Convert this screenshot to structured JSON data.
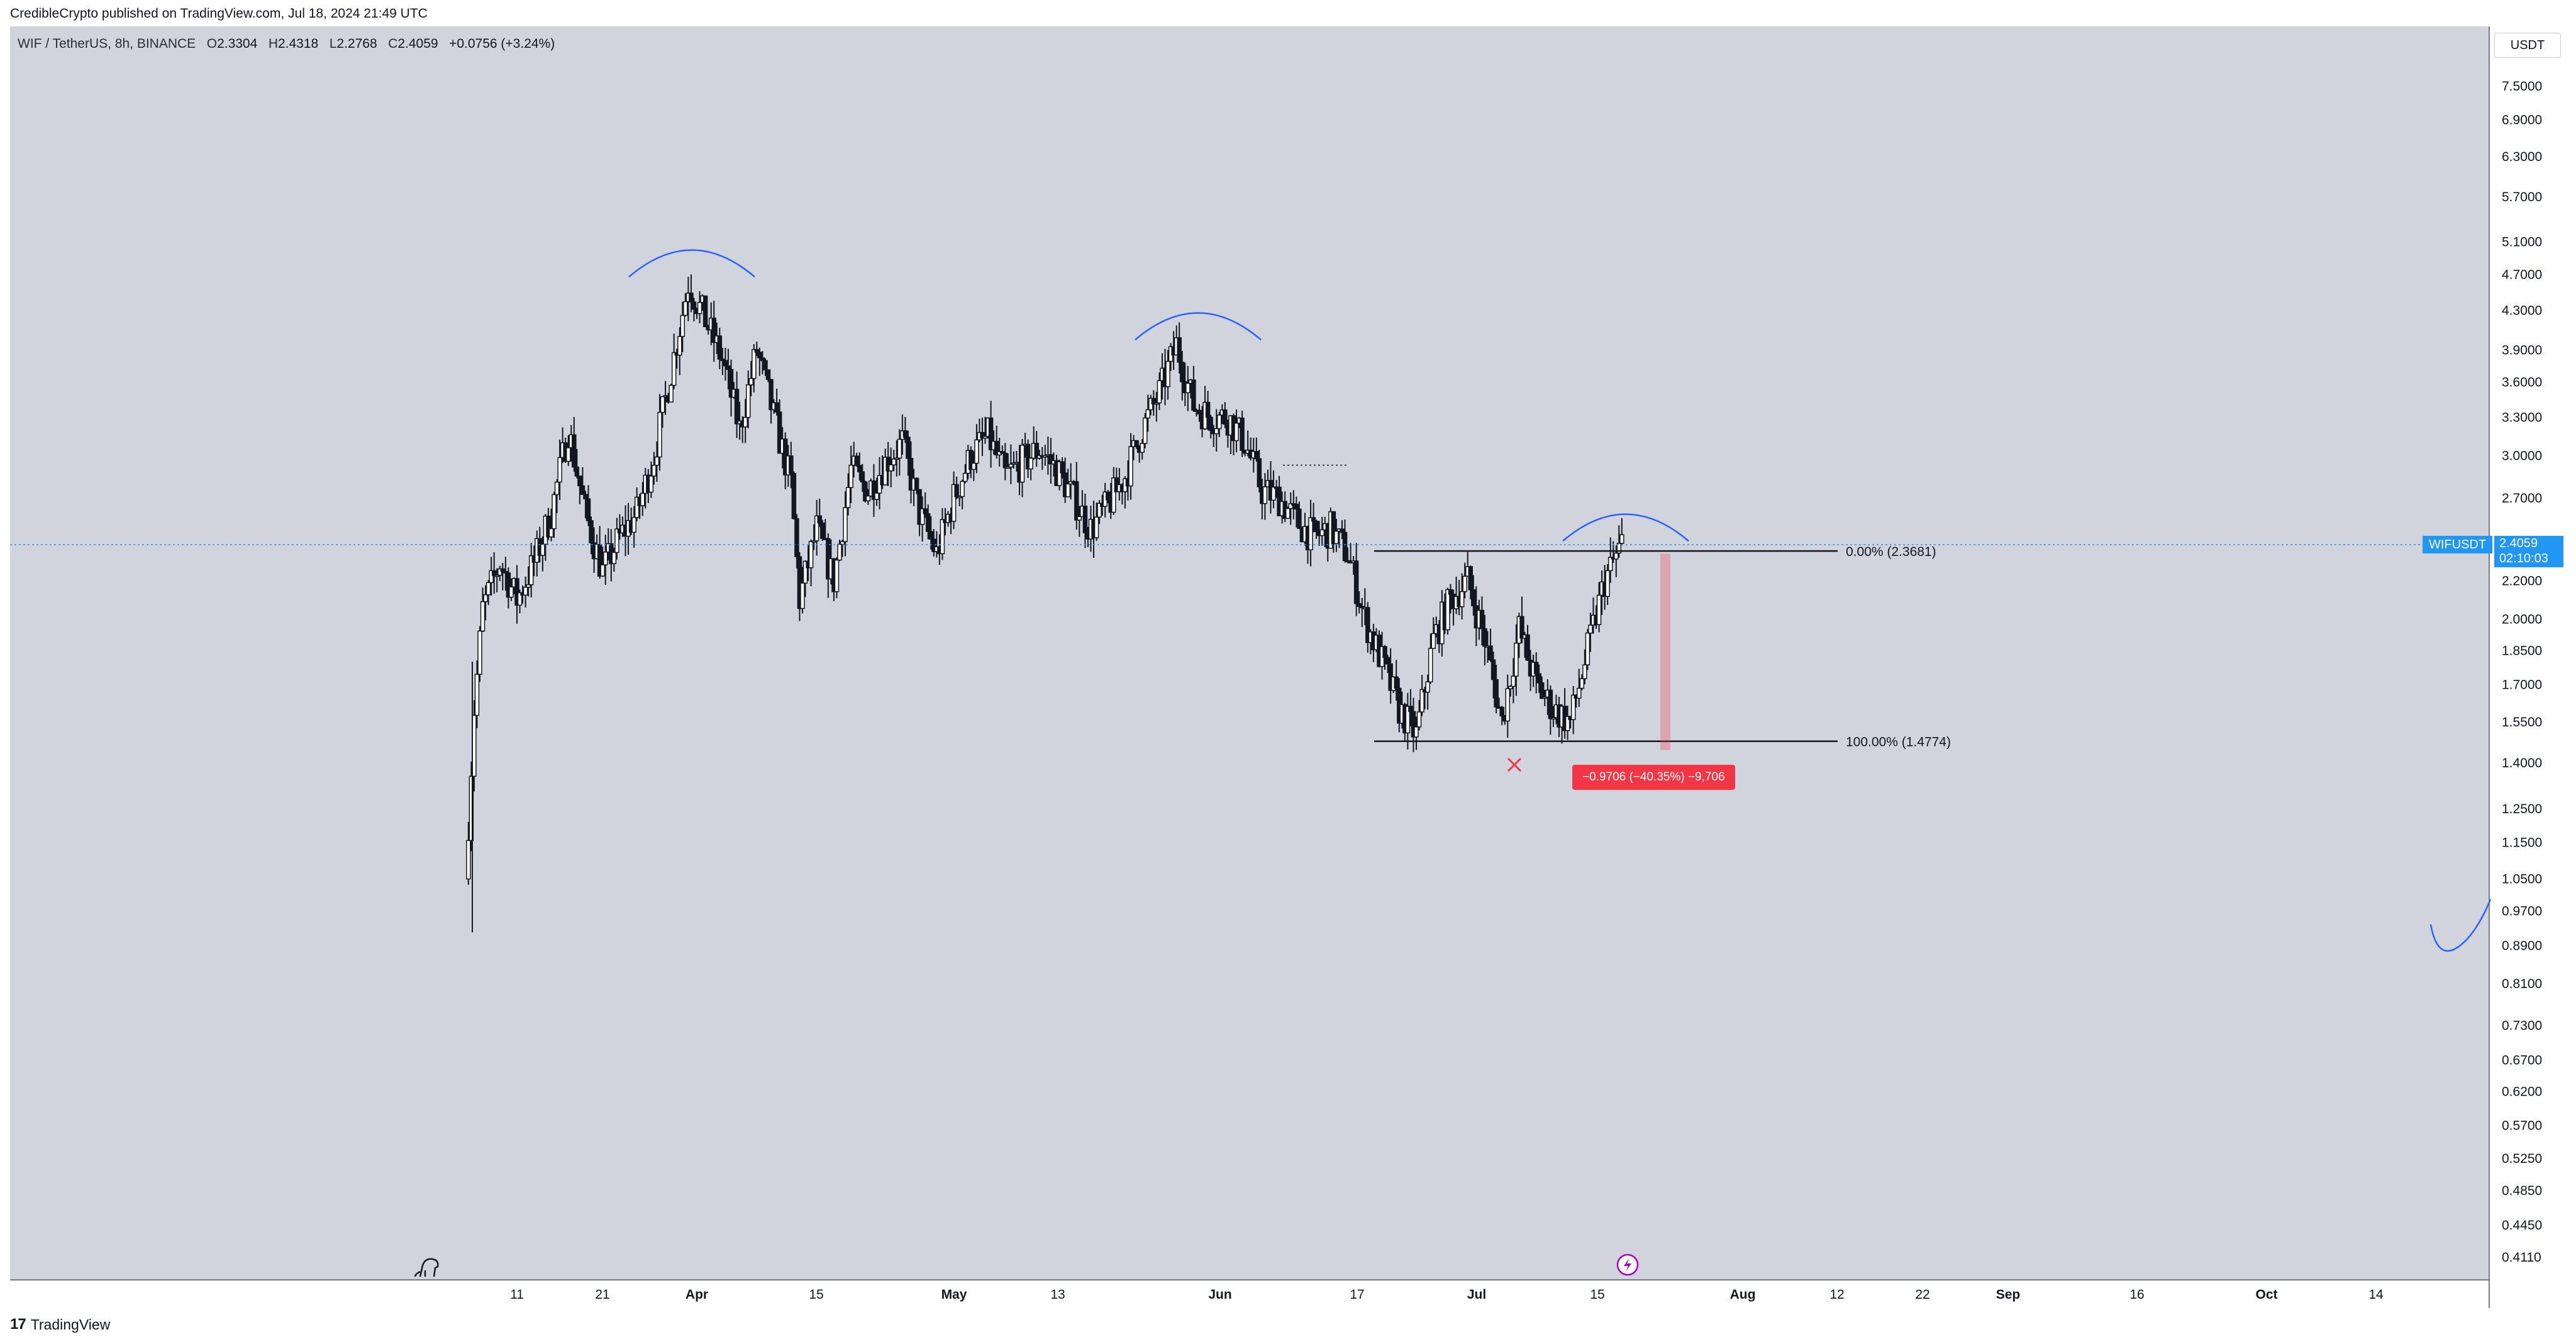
{
  "header": {
    "publisher": "CredibleCrypto published on TradingView.com, Jul 18, 2024 21:49 UTC"
  },
  "legend": {
    "symbol": "WIF / TetherUS, 8h, BINANCE",
    "open_label": "O",
    "open": "2.3304",
    "high_label": "H",
    "high": "2.4318",
    "low_label": "L",
    "low": "2.2768",
    "close_label": "C",
    "close": "2.4059",
    "change": "+0.0756 (+3.24%)"
  },
  "currency_button": "USDT",
  "last_price": {
    "symbol": "WIFUSDT",
    "price": "2.4059",
    "countdown": "02:10:03"
  },
  "fib": {
    "level0_label": "0.00% (2.3681)",
    "level1_label": "100.00% (1.4774)"
  },
  "measure": {
    "label": "−0.9706 (−40.35%) −9,706"
  },
  "footer": {
    "brand": "TradingView",
    "logo": "17"
  },
  "colors": {
    "background": "#d1d4dc",
    "price_line": "#2196f3",
    "arc": "#2962ff",
    "measure": "#f23645",
    "candle": "#131722"
  },
  "icons": [
    "dinosaur-icon",
    "lightning-icon",
    "cross-icon"
  ],
  "chart_data": {
    "type": "candlestick",
    "title": "WIF / TetherUS, 8h, BINANCE",
    "y_scale": "log",
    "y_ticks": [
      "7.5000",
      "6.9000",
      "6.3000",
      "5.7000",
      "5.1000",
      "4.7000",
      "4.3000",
      "3.9000",
      "3.6000",
      "3.3000",
      "3.0000",
      "2.7000",
      "2.2000",
      "2.0000",
      "1.8500",
      "1.7000",
      "1.5500",
      "1.4000",
      "1.2500",
      "1.1500",
      "1.0500",
      "0.9700",
      "0.8900",
      "0.8100",
      "0.7300",
      "0.6700",
      "0.6200",
      "0.5700",
      "0.5250",
      "0.4850",
      "0.4450",
      "0.4110"
    ],
    "x_ticks": [
      "11",
      "21",
      "Apr",
      "15",
      "May",
      "13",
      "Jun",
      "17",
      "Jul",
      "15",
      "Aug",
      "12",
      "22",
      "Sep",
      "16",
      "Oct",
      "14"
    ],
    "close_series": [
      [
        "2024-03-05",
        1.05
      ],
      [
        "2024-03-06",
        1.6
      ],
      [
        "2024-03-07",
        2.05
      ],
      [
        "2024-03-09",
        2.3
      ],
      [
        "2024-03-11",
        2.1
      ],
      [
        "2024-03-13",
        2.3
      ],
      [
        "2024-03-15",
        2.6
      ],
      [
        "2024-03-17",
        3.2
      ],
      [
        "2024-03-19",
        2.6
      ],
      [
        "2024-03-21",
        2.25
      ],
      [
        "2024-03-23",
        2.45
      ],
      [
        "2024-03-25",
        2.6
      ],
      [
        "2024-03-27",
        3.0
      ],
      [
        "2024-03-29",
        3.7
      ],
      [
        "2024-03-31",
        4.6
      ],
      [
        "2024-04-02",
        4.2
      ],
      [
        "2024-04-04",
        3.8
      ],
      [
        "2024-04-06",
        3.2
      ],
      [
        "2024-04-08",
        3.9
      ],
      [
        "2024-04-10",
        3.3
      ],
      [
        "2024-04-12",
        2.8
      ],
      [
        "2024-04-13",
        2.1
      ],
      [
        "2024-04-15",
        2.5
      ],
      [
        "2024-04-17",
        2.2
      ],
      [
        "2024-04-19",
        2.9
      ],
      [
        "2024-04-21",
        2.75
      ],
      [
        "2024-04-23",
        2.95
      ],
      [
        "2024-04-25",
        3.1
      ],
      [
        "2024-04-27",
        2.6
      ],
      [
        "2024-04-29",
        2.35
      ],
      [
        "2024-05-01",
        2.7
      ],
      [
        "2024-05-03",
        3.0
      ],
      [
        "2024-05-05",
        3.15
      ],
      [
        "2024-05-07",
        2.85
      ],
      [
        "2024-05-09",
        2.95
      ],
      [
        "2024-05-11",
        3.05
      ],
      [
        "2024-05-13",
        2.9
      ],
      [
        "2024-05-15",
        2.7
      ],
      [
        "2024-05-17",
        2.5
      ],
      [
        "2024-05-19",
        2.65
      ],
      [
        "2024-05-21",
        2.85
      ],
      [
        "2024-05-23",
        3.2
      ],
      [
        "2024-05-25",
        3.5
      ],
      [
        "2024-05-27",
        3.95
      ],
      [
        "2024-05-29",
        3.4
      ],
      [
        "2024-05-31",
        3.3
      ],
      [
        "2024-06-02",
        3.3
      ],
      [
        "2024-06-04",
        3.1
      ],
      [
        "2024-06-06",
        2.75
      ],
      [
        "2024-06-08",
        2.7
      ],
      [
        "2024-06-10",
        2.55
      ],
      [
        "2024-06-12",
        2.45
      ],
      [
        "2024-06-14",
        2.5
      ],
      [
        "2024-06-16",
        2.35
      ],
      [
        "2024-06-18",
        2.0
      ],
      [
        "2024-06-20",
        1.8
      ],
      [
        "2024-06-22",
        1.6
      ],
      [
        "2024-06-24",
        1.5
      ],
      [
        "2024-06-26",
        1.9
      ],
      [
        "2024-06-28",
        2.1
      ],
      [
        "2024-06-30",
        2.2
      ],
      [
        "2024-07-02",
        1.9
      ],
      [
        "2024-07-04",
        1.55
      ],
      [
        "2024-07-06",
        1.95
      ],
      [
        "2024-07-08",
        1.7
      ],
      [
        "2024-07-10",
        1.6
      ],
      [
        "2024-07-12",
        1.55
      ],
      [
        "2024-07-14",
        1.85
      ],
      [
        "2024-07-16",
        2.2
      ],
      [
        "2024-07-18",
        2.41
      ]
    ]
  }
}
